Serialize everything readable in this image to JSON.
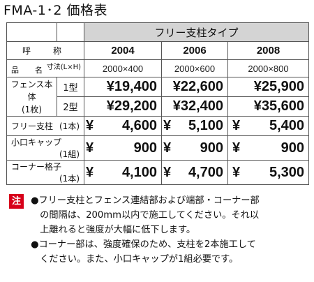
{
  "title": "FMA-1･2 価格表",
  "band": "フリー支柱タイプ",
  "header": {
    "yobi": "呼　称",
    "models": [
      "2004",
      "2006",
      "2008"
    ]
  },
  "dim_row": {
    "hinmei": "品　名",
    "sunpo": "寸法(L×H)",
    "sizes": [
      "2000×400",
      "2000×600",
      "2000×800"
    ]
  },
  "fence": {
    "name": "フェンス本体",
    "qty": "(1枚)",
    "rows": [
      {
        "type": "1型",
        "prices": [
          "¥19,400",
          "¥22,600",
          "¥25,900"
        ]
      },
      {
        "type": "2型",
        "prices": [
          "¥29,200",
          "¥32,400",
          "¥35,600"
        ]
      }
    ]
  },
  "items": [
    {
      "name": "フリー支柱",
      "unit": "(1本)",
      "prices": [
        "4,600",
        "5,100",
        "5,400"
      ]
    },
    {
      "name": "小口キャップ",
      "unit": "(1組)",
      "prices": [
        "900",
        "900",
        "900"
      ]
    },
    {
      "name": "コーナー格子",
      "unit": "(1本)",
      "prices": [
        "4,100",
        "4,700",
        "5,300"
      ]
    }
  ],
  "yen": "¥",
  "notes": {
    "mark": "注",
    "lines": [
      "●フリー支柱とフェンス連結部および端部・コーナー部",
      "　の間隔は、200mm以内で施工してください。それ以",
      "　上離れると強度が大幅に低下します。",
      "●コーナー部は、強度確保のため、支柱を2本施工して",
      "　ください。また、小口キャップが1組必要です。"
    ]
  }
}
